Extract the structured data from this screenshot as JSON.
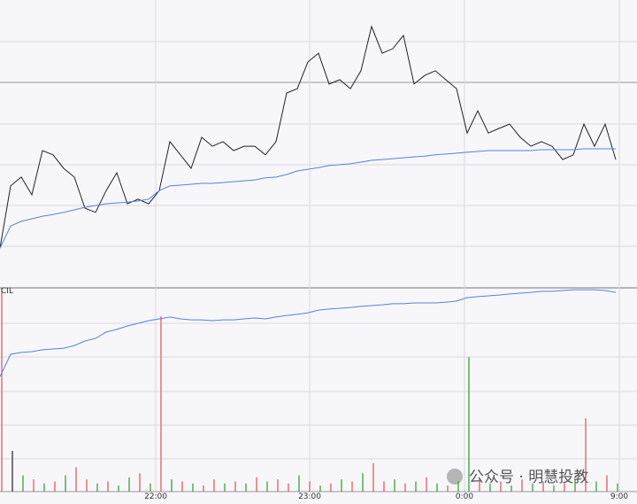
{
  "chart_data": [
    {
      "type": "line",
      "xlim": [
        0,
        60
      ],
      "ylim": [
        0,
        100
      ],
      "x": [
        0,
        1,
        2,
        3,
        4,
        5,
        6,
        7,
        8,
        9,
        10,
        11,
        12,
        13,
        14,
        15,
        16,
        17,
        18,
        19,
        20,
        21,
        22,
        23,
        24,
        25,
        26,
        27,
        28,
        29,
        30,
        31,
        32,
        33,
        34,
        35,
        36,
        37,
        38,
        39,
        40,
        41,
        42,
        43,
        44,
        45,
        46,
        47,
        48,
        49,
        50,
        51,
        52,
        53,
        54,
        55,
        56,
        57,
        58
      ],
      "series": [
        {
          "color": "#222222",
          "values": [
            13.8,
            35.4,
            38.5,
            32.3,
            47.7,
            46.2,
            41.5,
            38.5,
            27.7,
            26.2,
            33.8,
            40,
            29.2,
            30.8,
            29.2,
            33.8,
            50.8,
            46.2,
            41.5,
            52.3,
            49.2,
            50.8,
            47.7,
            49.2,
            49.2,
            46.2,
            50.8,
            67.7,
            69.2,
            78.5,
            81.5,
            70.8,
            72.3,
            69.2,
            75.4,
            90.8,
            81.5,
            83.1,
            87.7,
            70.8,
            73.8,
            75.4,
            72.3,
            69.2,
            53.8,
            61.5,
            53.8,
            55.4,
            56.9,
            52.3,
            49.2,
            50.8,
            49.2,
            44.6,
            46.2,
            56.9,
            49.2,
            56.9,
            44.6
          ]
        },
        {
          "color": "#5b7fe0",
          "values": [
            13.8,
            21.5,
            23.1,
            24,
            24.9,
            25.5,
            26.2,
            27.1,
            28,
            28.6,
            29.2,
            29.5,
            29.8,
            30.2,
            30.8,
            33.8,
            35.4,
            35.7,
            36,
            36.3,
            36.3,
            36.6,
            36.9,
            37.2,
            37.5,
            38.2,
            38.5,
            39.4,
            40.6,
            41.2,
            41.8,
            42.5,
            42.8,
            43.1,
            43.7,
            44.3,
            44.6,
            44.9,
            45.2,
            45.5,
            45.8,
            46.2,
            46.5,
            46.8,
            47.1,
            47.4,
            47.7,
            47.7,
            47.7,
            47.7,
            47.7,
            48,
            48,
            48,
            48,
            48.3,
            48.3,
            48.3,
            48.3
          ]
        }
      ]
    },
    {
      "type": "volume",
      "label": "CIL",
      "xlim": [
        0,
        60
      ],
      "ylim": [
        0,
        100
      ],
      "xticks": [
        {
          "value": 14.67,
          "label": "22:00"
        },
        {
          "value": 29.17,
          "label": "23:00"
        },
        {
          "value": 43.75,
          "label": "0:00"
        },
        {
          "value": 58.33,
          "label": "9:00"
        }
      ],
      "x": [
        0,
        1,
        2,
        3,
        4,
        5,
        6,
        7,
        8,
        9,
        10,
        11,
        12,
        13,
        14,
        15,
        16,
        17,
        18,
        19,
        20,
        21,
        22,
        23,
        24,
        25,
        26,
        27,
        28,
        29,
        30,
        31,
        32,
        33,
        34,
        35,
        36,
        37,
        38,
        39,
        40,
        41,
        42,
        43,
        44,
        45,
        46,
        47,
        48,
        49,
        50,
        51,
        52,
        53,
        54,
        55,
        56,
        57,
        58
      ],
      "values": [
        100,
        20,
        8,
        6,
        4,
        5,
        8,
        12,
        6,
        4,
        5,
        3,
        7,
        9,
        4,
        86,
        6,
        5,
        4,
        3,
        6,
        4,
        5,
        4,
        7,
        5,
        6,
        4,
        8,
        5,
        3,
        4,
        6,
        5,
        9,
        14,
        5,
        6,
        4,
        5,
        7,
        4,
        3,
        5,
        66,
        6,
        4,
        5,
        3,
        6,
        4,
        5,
        3,
        4,
        6,
        36,
        5,
        8,
        4
      ],
      "colors": [
        "#e05050",
        "#222222",
        "#2a9a2a",
        "#e05050",
        "#2a9a2a",
        "#e05050",
        "#2a9a2a",
        "#e05050",
        "#e05050",
        "#2a9a2a",
        "#e05050",
        "#2a9a2a",
        "#2a9a2a",
        "#e05050",
        "#2a9a2a",
        "#e05050",
        "#2a9a2a",
        "#e05050",
        "#2a9a2a",
        "#e05050",
        "#e05050",
        "#2a9a2a",
        "#e05050",
        "#2a9a2a",
        "#e05050",
        "#2a9a2a",
        "#e05050",
        "#e05050",
        "#2a9a2a",
        "#e05050",
        "#2a9a2a",
        "#e05050",
        "#2a9a2a",
        "#e05050",
        "#2a9a2a",
        "#e05050",
        "#e05050",
        "#2a9a2a",
        "#e05050",
        "#2a9a2a",
        "#e05050",
        "#2a9a2a",
        "#e05050",
        "#2a9a2a",
        "#2a9a2a",
        "#e05050",
        "#2a9a2a",
        "#e05050",
        "#2a9a2a",
        "#e05050",
        "#2a9a2a",
        "#e05050",
        "#2a9a2a",
        "#e05050",
        "#2a9a2a",
        "#e05050",
        "#2a9a2a",
        "#e05050",
        "#2a9a2a"
      ],
      "line": {
        "color": "#5b7fe0",
        "values": [
          56.5,
          67.4,
          68.3,
          68.7,
          69.6,
          70,
          70.4,
          71.7,
          73.9,
          75.2,
          78.3,
          79.6,
          81.3,
          82.6,
          83.9,
          84.8,
          85.7,
          84.8,
          84.3,
          84.3,
          83.9,
          84.3,
          84.3,
          84.8,
          85.2,
          84.8,
          85.7,
          86.5,
          87,
          87.8,
          89.1,
          89.6,
          90,
          90.4,
          90.9,
          91.3,
          91.7,
          92.2,
          92.2,
          92.6,
          92.6,
          92.6,
          93,
          93.5,
          95.2,
          95.7,
          96.1,
          96.5,
          97,
          97.4,
          97.8,
          98.3,
          98.3,
          98.7,
          99.1,
          99.1,
          99.1,
          98.7,
          97.8
        ]
      }
    }
  ],
  "watermark": "公众号 · 明慧投教"
}
